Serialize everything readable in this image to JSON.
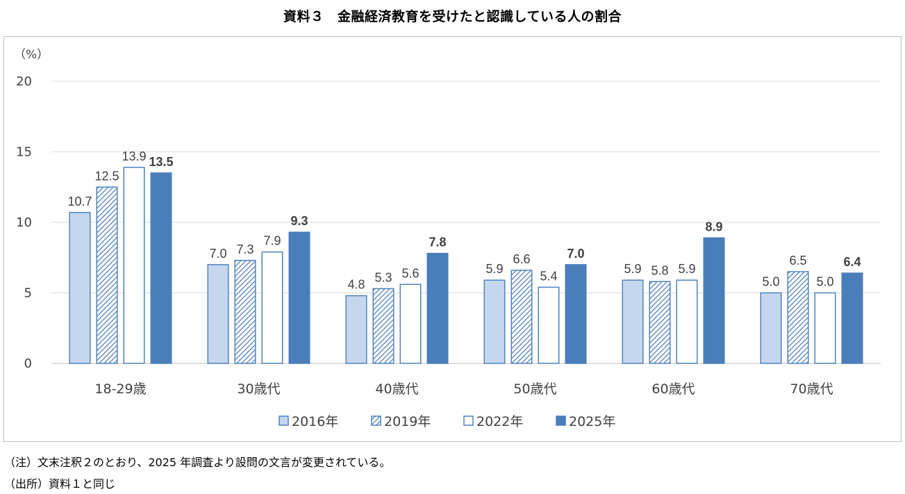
{
  "chart_data": {
    "type": "bar",
    "title": "資料３　金融経済教育を受けたと認識している人の割合",
    "ylabel": "（%）",
    "xlabel": "",
    "ylim": [
      0,
      20
    ],
    "yticks": [
      0,
      5,
      10,
      15,
      20
    ],
    "grid": true,
    "legend_position": "bottom",
    "categories": [
      "18-29歳",
      "30歳代",
      "40歳代",
      "50歳代",
      "60歳代",
      "70歳代"
    ],
    "series": [
      {
        "name": "2016年",
        "values": [
          10.7,
          7.0,
          4.8,
          5.9,
          5.9,
          5.0
        ],
        "labels": [
          "10.7",
          "7.0",
          "4.8",
          "5.9",
          "5.9",
          "5.0"
        ],
        "style": "light",
        "bold": false
      },
      {
        "name": "2019年",
        "values": [
          12.5,
          7.3,
          5.3,
          6.6,
          5.8,
          6.5
        ],
        "labels": [
          "12.5",
          "7.3",
          "5.3",
          "6.6",
          "5.8",
          "6.5"
        ],
        "style": "hatched",
        "bold": false
      },
      {
        "name": "2022年",
        "values": [
          13.9,
          7.9,
          5.6,
          5.4,
          5.9,
          5.0
        ],
        "labels": [
          "13.9",
          "7.9",
          "5.6",
          "5.4",
          "5.9",
          "5.0"
        ],
        "style": "outline",
        "bold": false
      },
      {
        "name": "2025年",
        "values": [
          13.5,
          9.3,
          7.8,
          7.0,
          8.9,
          6.4
        ],
        "labels": [
          "13.5",
          "9.3",
          "7.8",
          "7.0",
          "8.9",
          "6.4"
        ],
        "style": "solid",
        "bold": true
      }
    ]
  },
  "colors": {
    "light_fill": "#c5d7ef",
    "bar_blue": "#4f81bd",
    "solid_fill": "#4a7ebb",
    "grid": "#d9d9d9",
    "axis": "#bfbfbf",
    "text": "#404040"
  },
  "notes": {
    "note1": "（注）文末注釈２のとおり、2025 年調査より設問の文言が変更されている。",
    "note2": "（出所）資料１と同じ"
  }
}
